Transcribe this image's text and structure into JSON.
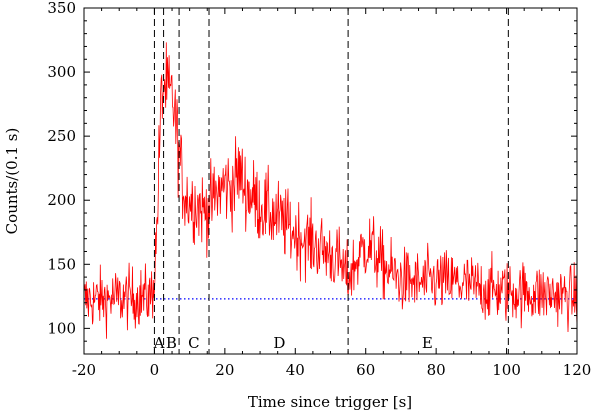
{
  "chart_data": {
    "type": "line",
    "xlabel": "Time since trigger [s]",
    "ylabel": "Counts/(0.1 s)",
    "xlim": [
      -20,
      120
    ],
    "ylim": [
      80,
      350
    ],
    "xticks": [
      -20,
      0,
      20,
      40,
      60,
      80,
      100,
      120
    ],
    "yticks": [
      100,
      150,
      200,
      250,
      300,
      350
    ],
    "x_tick_labels": [
      "-20",
      "0",
      "20",
      "40",
      "60",
      "80",
      "100",
      "120"
    ],
    "y_tick_labels": [
      "100",
      "150",
      "200",
      "250",
      "300",
      "350"
    ],
    "grid": false,
    "bin_width_s": 0.1,
    "series": [
      {
        "color": "#ff0000",
        "style": "solid",
        "noise_amplitude": 13,
        "envelope_x": [
          -20,
          -1,
          -0.2,
          0.5,
          1,
          1.8,
          2.5,
          3,
          4,
          5,
          5.5,
          6,
          7,
          8,
          9,
          10,
          12,
          14,
          16,
          18,
          20,
          22,
          24,
          26,
          28,
          30,
          33,
          36,
          40,
          45,
          50,
          53,
          54,
          55,
          57,
          59,
          60,
          62,
          64,
          66,
          68,
          70,
          75,
          80,
          85,
          90,
          95,
          100,
          105,
          110,
          115,
          120
        ],
        "envelope_y": [
          122,
          125,
          135,
          165,
          205,
          270,
          290,
          288,
          282,
          278,
          275,
          260,
          238,
          212,
          204,
          200,
          197,
          192,
          196,
          206,
          212,
          210,
          222,
          208,
          202,
          196,
          190,
          184,
          174,
          166,
          158,
          150,
          142,
          140,
          150,
          160,
          165,
          162,
          152,
          146,
          142,
          138,
          135,
          137,
          136,
          133,
          130,
          129,
          128,
          127,
          126,
          124
        ]
      },
      {
        "color": "#0000ff",
        "style": "dotted",
        "constant_y": 123
      }
    ],
    "vertical_lines": [
      0,
      2.6,
      7,
      15.5,
      55,
      100.5
    ],
    "segments": [
      {
        "label": "A",
        "x": 1.3
      },
      {
        "label": "B",
        "x": 4.8
      },
      {
        "label": "C",
        "x": 11.2
      },
      {
        "label": "D",
        "x": 35.5
      },
      {
        "label": "E",
        "x": 77.5
      }
    ]
  }
}
